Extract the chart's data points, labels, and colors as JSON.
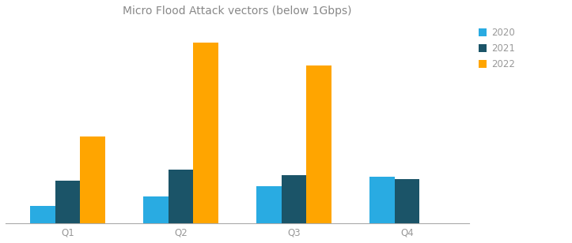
{
  "title": "Micro Flood Attack vectors (below 1Gbps)",
  "categories": [
    "Q1",
    "Q2",
    "Q3",
    "Q4"
  ],
  "series": {
    "2020": [
      1.3,
      2.0,
      2.8,
      3.5
    ],
    "2021": [
      3.2,
      4.0,
      3.6,
      3.3
    ],
    "2022": [
      6.5,
      13.5,
      11.8,
      0.0
    ]
  },
  "colors": {
    "2020": "#29ABE2",
    "2021": "#1B5468",
    "2022": "#FFA500"
  },
  "legend_labels": [
    "2020",
    "2021",
    "2022"
  ],
  "background_color": "#FFFFFF",
  "grid_color": "#DDDDDD",
  "title_fontsize": 10,
  "label_fontsize": 8.5,
  "tick_fontsize": 8.5,
  "bar_width": 0.22,
  "ylim": [
    0,
    15
  ],
  "title_color": "#888888",
  "axis_color": "#AAAAAA",
  "tick_color": "#999999"
}
